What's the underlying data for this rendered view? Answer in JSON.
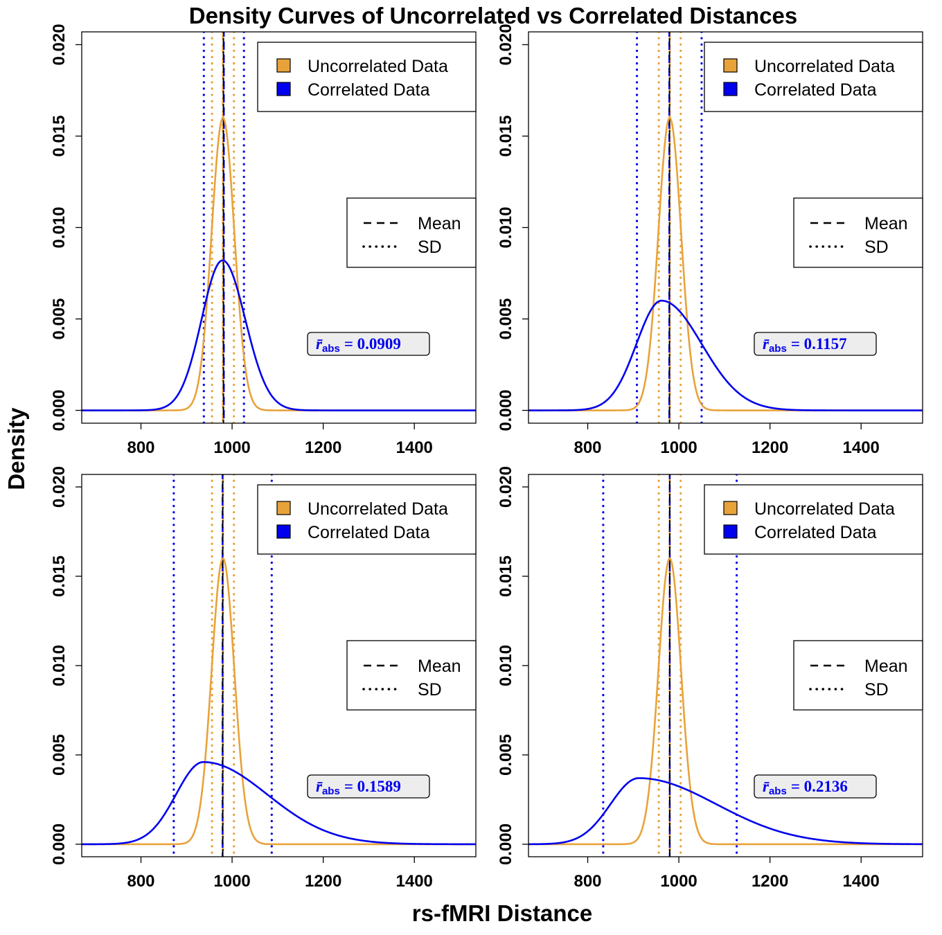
{
  "title": "Density Curves of Uncorrelated vs Correlated Distances",
  "xlabel": "rs-fMRI Distance",
  "ylabel": "Density",
  "colors": {
    "uncorrelated": "#E8A23A",
    "correlated": "#0000EE",
    "reference": "#000000",
    "annotation_bg": "#EDEDED"
  },
  "legend_fill": {
    "items": [
      {
        "label": "Uncorrelated Data",
        "color": "#E8A23A"
      },
      {
        "label": "Correlated Data",
        "color": "#0000EE"
      }
    ]
  },
  "legend_lines": {
    "items": [
      {
        "label": "Mean",
        "style": "dashed"
      },
      {
        "label": "SD",
        "style": "dotted"
      }
    ]
  },
  "chart_data": [
    {
      "type": "line",
      "panel": "top-left",
      "xlim": [
        670,
        1535
      ],
      "ylim": [
        -0.0007,
        0.0207
      ],
      "xticks": [
        "800",
        "1000",
        "1200",
        "1400"
      ],
      "yticks": [
        "0.000",
        "0.005",
        "0.010",
        "0.015",
        "0.020"
      ],
      "annotation": {
        "prefix": "r̄",
        "subscript": "abs",
        "value": "= 0.0909"
      },
      "series": [
        {
          "name": "Uncorrelated Data",
          "peak_x": 980,
          "peak_y": 0.016,
          "sd_left": 25,
          "sd_right": 25,
          "mean": 980,
          "sd_lines": [
            956,
            1004
          ]
        },
        {
          "name": "Correlated Data",
          "peak_x": 979,
          "peak_y": 0.0082,
          "sd_left": 46,
          "sd_right": 50,
          "mean": 982,
          "sd_lines": [
            938,
            1026
          ]
        }
      ]
    },
    {
      "type": "line",
      "panel": "top-right",
      "xlim": [
        670,
        1535
      ],
      "ylim": [
        -0.0007,
        0.0207
      ],
      "xticks": [
        "800",
        "1000",
        "1200",
        "1400"
      ],
      "yticks": [
        "0.000",
        "0.005",
        "0.010",
        "0.015",
        "0.020"
      ],
      "annotation": {
        "prefix": "r̄",
        "subscript": "abs",
        "value": "= 0.1157"
      },
      "series": [
        {
          "name": "Uncorrelated Data",
          "peak_x": 980,
          "peak_y": 0.016,
          "sd_left": 25,
          "sd_right": 25,
          "mean": 980,
          "sd_lines": [
            956,
            1004
          ]
        },
        {
          "name": "Correlated Data",
          "peak_x": 962,
          "peak_y": 0.006,
          "sd_left": 55,
          "sd_right": 88,
          "mean": 979,
          "sd_lines": [
            908,
            1050
          ]
        }
      ]
    },
    {
      "type": "line",
      "panel": "bottom-left",
      "xlim": [
        670,
        1535
      ],
      "ylim": [
        -0.0007,
        0.0207
      ],
      "xticks": [
        "800",
        "1000",
        "1200",
        "1400"
      ],
      "yticks": [
        "0.000",
        "0.005",
        "0.010",
        "0.015",
        "0.020"
      ],
      "annotation": {
        "prefix": "r̄",
        "subscript": "abs",
        "value": "= 0.1589"
      },
      "series": [
        {
          "name": "Uncorrelated Data",
          "peak_x": 980,
          "peak_y": 0.016,
          "sd_left": 25,
          "sd_right": 25,
          "mean": 980,
          "sd_lines": [
            956,
            1004
          ]
        },
        {
          "name": "Correlated Data",
          "peak_x": 937,
          "peak_y": 0.0046,
          "sd_left": 60,
          "sd_right": 140,
          "mean": 979,
          "sd_lines": [
            872,
            1087
          ]
        }
      ]
    },
    {
      "type": "line",
      "panel": "bottom-right",
      "xlim": [
        670,
        1535
      ],
      "ylim": [
        -0.0007,
        0.0207
      ],
      "xticks": [
        "800",
        "1000",
        "1200",
        "1400"
      ],
      "yticks": [
        "0.000",
        "0.005",
        "0.010",
        "0.015",
        "0.020"
      ],
      "annotation": {
        "prefix": "r̄",
        "subscript": "abs",
        "value": "= 0.2136"
      },
      "series": [
        {
          "name": "Uncorrelated Data",
          "peak_x": 980,
          "peak_y": 0.016,
          "sd_left": 25,
          "sd_right": 25,
          "mean": 980,
          "sd_lines": [
            956,
            1004
          ]
        },
        {
          "name": "Correlated Data",
          "peak_x": 912,
          "peak_y": 0.0037,
          "sd_left": 62,
          "sd_right": 170,
          "mean": 980,
          "sd_lines": [
            834,
            1127
          ]
        }
      ]
    }
  ]
}
